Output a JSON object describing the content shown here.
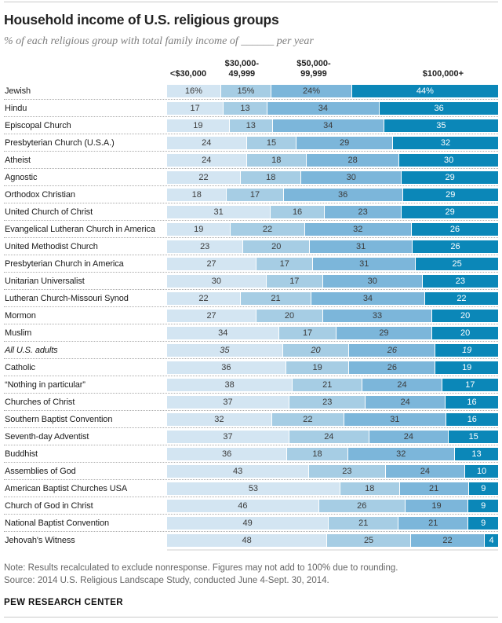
{
  "header": {
    "title": "Household income of U.S. religious groups",
    "subtitle": "% of each religious group with total family income of ______ per year"
  },
  "chart_data": {
    "type": "bar",
    "subtype": "horizontal-stacked-100pct",
    "unit": "%",
    "value_range": [
      0,
      100
    ],
    "legend_position": "column-headers-top",
    "grid": "off",
    "categories_axis": "religious groups (rows)",
    "series_labels": [
      "<$30,000",
      "$30,000-\n49,999",
      "$50,000-\n99,999",
      "$100,000+"
    ],
    "colors": [
      "#d3e5f2",
      "#a6cde4",
      "#7cb6da",
      "#0b87b8"
    ],
    "rows": [
      {
        "label": "Jewish",
        "values": [
          16,
          15,
          24,
          44
        ],
        "suffix": "%",
        "italic": false
      },
      {
        "label": "Hindu",
        "values": [
          17,
          13,
          34,
          36
        ],
        "suffix": "",
        "italic": false
      },
      {
        "label": "Episcopal Church",
        "values": [
          19,
          13,
          34,
          35
        ],
        "suffix": "",
        "italic": false
      },
      {
        "label": "Presbyterian Church (U.S.A.)",
        "values": [
          24,
          15,
          29,
          32
        ],
        "suffix": "",
        "italic": false
      },
      {
        "label": "Atheist",
        "values": [
          24,
          18,
          28,
          30
        ],
        "suffix": "",
        "italic": false
      },
      {
        "label": "Agnostic",
        "values": [
          22,
          18,
          30,
          29
        ],
        "suffix": "",
        "italic": false
      },
      {
        "label": "Orthodox Christian",
        "values": [
          18,
          17,
          36,
          29
        ],
        "suffix": "",
        "italic": false
      },
      {
        "label": "United Church of Christ",
        "values": [
          31,
          16,
          23,
          29
        ],
        "suffix": "",
        "italic": false
      },
      {
        "label": "Evangelical Lutheran Church in America",
        "values": [
          19,
          22,
          32,
          26
        ],
        "suffix": "",
        "italic": false
      },
      {
        "label": "United Methodist Church",
        "values": [
          23,
          20,
          31,
          26
        ],
        "suffix": "",
        "italic": false
      },
      {
        "label": "Presbyterian Church in America",
        "values": [
          27,
          17,
          31,
          25
        ],
        "suffix": "",
        "italic": false
      },
      {
        "label": "Unitarian Universalist",
        "values": [
          30,
          17,
          30,
          23
        ],
        "suffix": "",
        "italic": false
      },
      {
        "label": "Lutheran Church-Missouri Synod",
        "values": [
          22,
          21,
          34,
          22
        ],
        "suffix": "",
        "italic": false
      },
      {
        "label": "Mormon",
        "values": [
          27,
          20,
          33,
          20
        ],
        "suffix": "",
        "italic": false
      },
      {
        "label": "Muslim",
        "values": [
          34,
          17,
          29,
          20
        ],
        "suffix": "",
        "italic": false
      },
      {
        "label": "All U.S. adults",
        "values": [
          35,
          20,
          26,
          19
        ],
        "suffix": "",
        "italic": true
      },
      {
        "label": "Catholic",
        "values": [
          36,
          19,
          26,
          19
        ],
        "suffix": "",
        "italic": false
      },
      {
        "label": "“Nothing in particular”",
        "values": [
          38,
          21,
          24,
          17
        ],
        "suffix": "",
        "italic": false
      },
      {
        "label": "Churches of Christ",
        "values": [
          37,
          23,
          24,
          16
        ],
        "suffix": "",
        "italic": false
      },
      {
        "label": "Southern Baptist Convention",
        "values": [
          32,
          22,
          31,
          16
        ],
        "suffix": "",
        "italic": false
      },
      {
        "label": "Seventh-day Adventist",
        "values": [
          37,
          24,
          24,
          15
        ],
        "suffix": "",
        "italic": false
      },
      {
        "label": "Buddhist",
        "values": [
          36,
          18,
          32,
          13
        ],
        "suffix": "",
        "italic": false
      },
      {
        "label": "Assemblies of God",
        "values": [
          43,
          23,
          24,
          10
        ],
        "suffix": "",
        "italic": false
      },
      {
        "label": "American Baptist Churches USA",
        "values": [
          53,
          18,
          21,
          9
        ],
        "suffix": "",
        "italic": false
      },
      {
        "label": "Church of God in Christ",
        "values": [
          46,
          26,
          19,
          9
        ],
        "suffix": "",
        "italic": false
      },
      {
        "label": "National Baptist Convention",
        "values": [
          49,
          21,
          21,
          9
        ],
        "suffix": "",
        "italic": false
      },
      {
        "label": "Jehovah's Witness",
        "values": [
          48,
          25,
          22,
          4
        ],
        "suffix": "",
        "italic": false
      }
    ]
  },
  "footer": {
    "note": "Note: Results recalculated to exclude nonresponse. Figures may not add to 100% due to rounding.",
    "source": "Source: 2014 U.S. Religious Landscape Study, conducted June 4-Sept. 30, 2014.",
    "brand": "PEW RESEARCH CENTER"
  }
}
